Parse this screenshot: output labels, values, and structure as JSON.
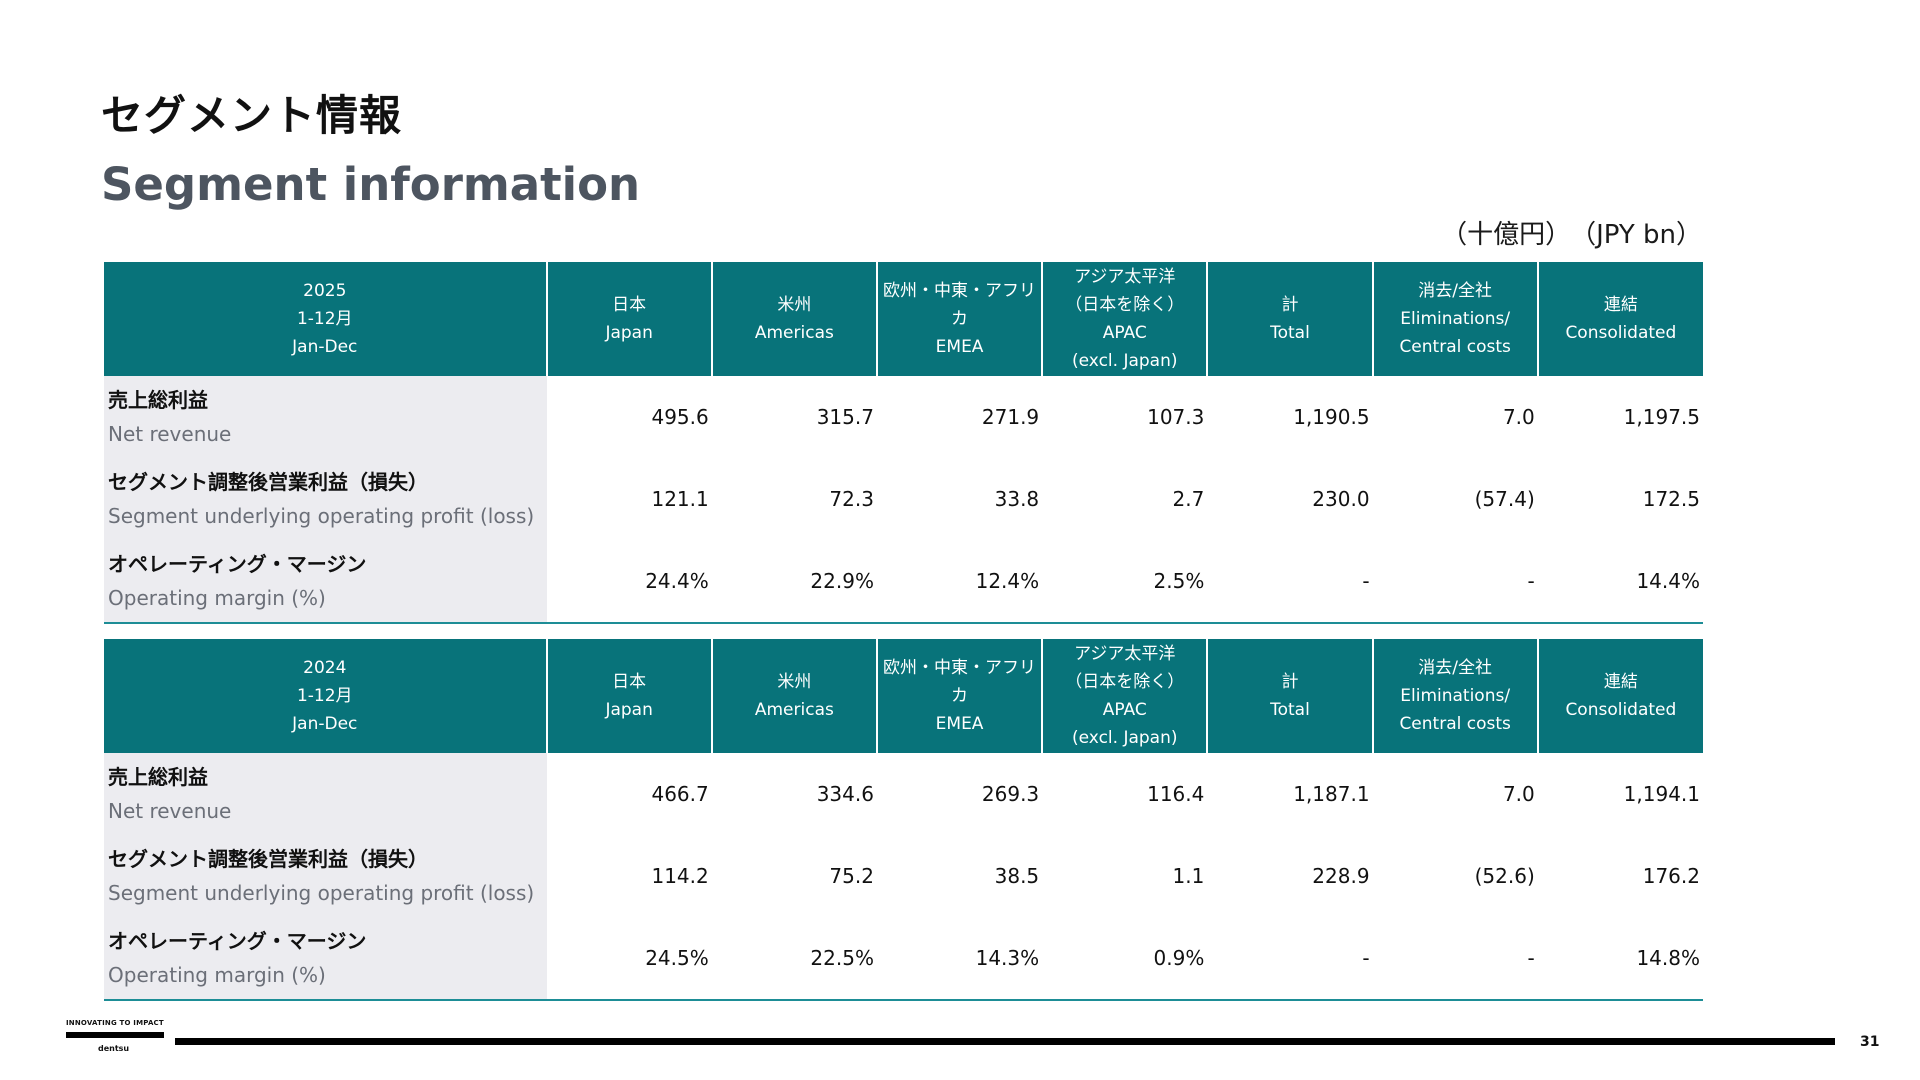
{
  "title_jp": "セグメント情報",
  "title_en": "Segment information",
  "unit_jp": "（十億円）",
  "unit_en": "（JPY bn）",
  "tables": [
    {
      "header": {
        "year": "2025",
        "period_jp": "1-12月",
        "period_en": "Jan-Dec",
        "columns": [
          {
            "jp": "日本",
            "en": "Japan"
          },
          {
            "jp": "米州",
            "en": "Americas"
          },
          {
            "jp": "欧州・中東・アフリカ",
            "en": "EMEA"
          },
          {
            "jp": "アジア太平洋",
            "jp2": "（日本を除く）",
            "en": "APAC",
            "en2": "(excl. Japan)"
          },
          {
            "jp": "計",
            "en": "Total"
          },
          {
            "jp": "消去/全社",
            "en": "Eliminations/",
            "en2": "Central costs"
          },
          {
            "jp": "連結",
            "en": "Consolidated"
          }
        ]
      },
      "rows": [
        {
          "jp": "売上総利益",
          "en": "Net revenue",
          "values": [
            "495.6",
            "315.7",
            "271.9",
            "107.3",
            "1,190.5",
            "7.0",
            "1,197.5"
          ]
        },
        {
          "jp": "セグメント調整後営業利益（損失）",
          "en": "Segment underlying operating profit (loss)",
          "values": [
            "121.1",
            "72.3",
            "33.8",
            "2.7",
            "230.0",
            "(57.4)",
            "172.5"
          ]
        },
        {
          "jp": "オペレーティング・マージン",
          "en": "Operating margin (%)",
          "values": [
            "24.4%",
            "22.9%",
            "12.4%",
            "2.5%",
            "-",
            "-",
            "14.4%"
          ]
        }
      ]
    },
    {
      "header": {
        "year": "2024",
        "period_jp": "1-12月",
        "period_en": "Jan-Dec",
        "columns": [
          {
            "jp": "日本",
            "en": "Japan"
          },
          {
            "jp": "米州",
            "en": "Americas"
          },
          {
            "jp": "欧州・中東・アフリカ",
            "en": "EMEA"
          },
          {
            "jp": "アジア太平洋",
            "jp2": "（日本を除く）",
            "en": "APAC",
            "en2": "(excl. Japan)"
          },
          {
            "jp": "計",
            "en": "Total"
          },
          {
            "jp": "消去/全社",
            "en": "Eliminations/",
            "en2": "Central costs"
          },
          {
            "jp": "連結",
            "en": "Consolidated"
          }
        ]
      },
      "rows": [
        {
          "jp": "売上総利益",
          "en": "Net revenue",
          "values": [
            "466.7",
            "334.6",
            "269.3",
            "116.4",
            "1,187.1",
            "7.0",
            "1,194.1"
          ]
        },
        {
          "jp": "セグメント調整後営業利益（損失）",
          "en": "Segment underlying operating profit (loss)",
          "values": [
            "114.2",
            "75.2",
            "38.5",
            "1.1",
            "228.9",
            "(52.6)",
            "176.2"
          ]
        },
        {
          "jp": "オペレーティング・マージン",
          "en": "Operating margin (%)",
          "values": [
            "24.5%",
            "22.5%",
            "14.3%",
            "0.9%",
            "-",
            "-",
            "14.8%"
          ]
        }
      ]
    }
  ],
  "footer": {
    "tagline": "INNOVATING TO IMPACT",
    "logo": "dentsu",
    "page_number": "31"
  }
}
